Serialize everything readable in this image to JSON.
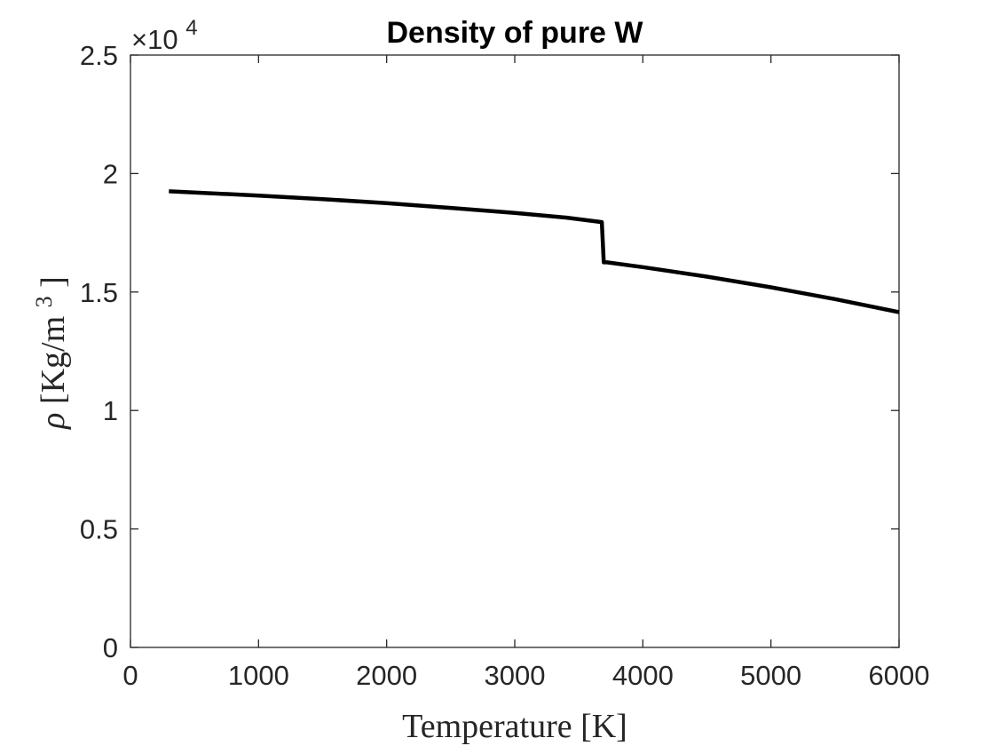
{
  "chart_data": {
    "type": "line",
    "title": "Density of pure W",
    "xlabel": "Temperature [K]",
    "ylabel": {
      "symbol": "ρ",
      "unit_open": " [Kg/m",
      "unit_sup": "3",
      "unit_close": "]"
    },
    "y_multiplier": {
      "base": "×10",
      "exponent": "4"
    },
    "xlim": [
      0,
      6000
    ],
    "ylim": [
      0,
      25000
    ],
    "x_ticks": [
      0,
      1000,
      2000,
      3000,
      4000,
      5000,
      6000
    ],
    "x_tick_labels": [
      "0",
      "1000",
      "2000",
      "3000",
      "4000",
      "5000",
      "6000"
    ],
    "y_ticks": [
      0,
      5000,
      10000,
      15000,
      20000,
      25000
    ],
    "y_tick_labels": [
      "0",
      "0.5",
      "1",
      "1.5",
      "2",
      "2.5"
    ],
    "grid": false,
    "series": [
      {
        "color": "#000000",
        "x": [
          300,
          1000,
          1500,
          2000,
          2500,
          3000,
          3400,
          3680,
          3695,
          3720,
          4000,
          4500,
          5000,
          5500,
          6000
        ],
        "y": [
          19250,
          19070,
          18920,
          18750,
          18550,
          18340,
          18140,
          17950,
          16250,
          16250,
          16050,
          15650,
          15200,
          14700,
          14150
        ]
      }
    ]
  }
}
